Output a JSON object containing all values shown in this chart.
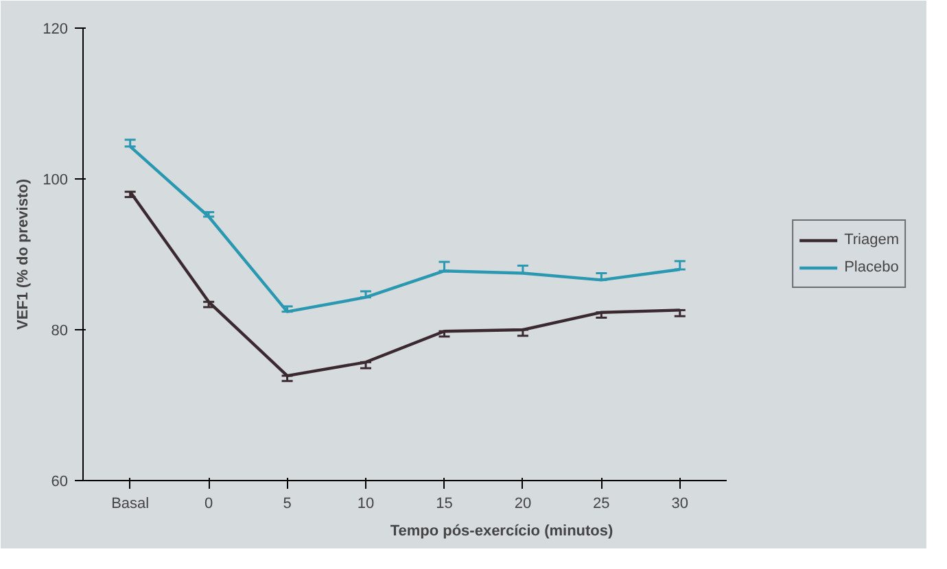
{
  "chart_data": {
    "type": "line",
    "xlabel": "Tempo pós-exercício (minutos)",
    "ylabel": "VEF1 (% do previsto)",
    "categories": [
      "Basal",
      "0",
      "5",
      "10",
      "15",
      "20",
      "25",
      "30"
    ],
    "series": [
      {
        "name": "Triagem",
        "color": "#3a2a30",
        "values": [
          98.3,
          83.7,
          73.9,
          75.7,
          79.8,
          80.0,
          82.3,
          82.6
        ],
        "errors": [
          [
            97.6,
            98.3
          ],
          [
            83.0,
            83.7
          ],
          [
            73.2,
            73.9
          ],
          [
            74.9,
            75.7
          ],
          [
            79.1,
            79.8
          ],
          [
            79.2,
            80.0
          ],
          [
            81.6,
            82.3
          ],
          [
            81.8,
            82.6
          ]
        ]
      },
      {
        "name": "Placebo",
        "color": "#2a98b0",
        "values": [
          104.3,
          95.0,
          82.4,
          84.3,
          87.8,
          87.5,
          86.6,
          88.0
        ],
        "errors": [
          [
            104.3,
            105.2
          ],
          [
            95.0,
            95.6
          ],
          [
            82.4,
            83.1
          ],
          [
            84.3,
            85.1
          ],
          [
            87.8,
            89.0
          ],
          [
            87.5,
            88.5
          ],
          [
            86.6,
            87.5
          ],
          [
            88.0,
            89.1
          ]
        ]
      }
    ],
    "ylim": [
      60,
      120
    ],
    "yticks": [
      60,
      80,
      100,
      120
    ],
    "grid": false,
    "legend": "right",
    "marker": "none",
    "line_style": "solid"
  }
}
